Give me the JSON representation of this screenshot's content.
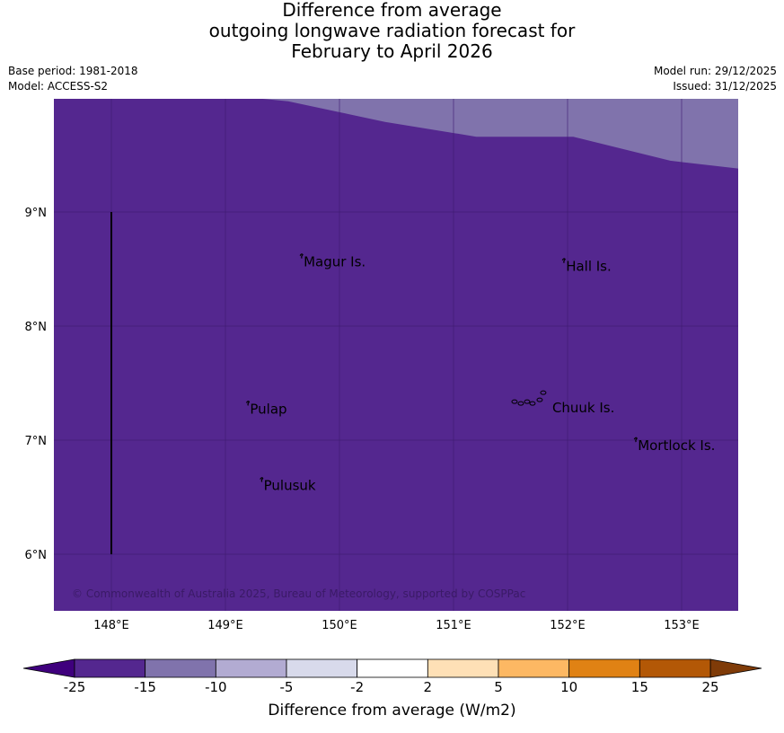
{
  "title": {
    "line1": "Difference from average",
    "line2": "outgoing longwave radiation forecast for",
    "line3": "February to April 2026"
  },
  "meta": {
    "base_period": "Base period: 1981-2018",
    "model": "Model: ACCESS-S2",
    "model_run": "Model run: 29/12/2025",
    "issued": "Issued: 31/12/2025"
  },
  "map": {
    "lon_range": [
      147.5,
      153.5
    ],
    "lat_range": [
      5.5,
      10.0
    ],
    "lon_ticks": [
      {
        "value": 148,
        "label": "148°E"
      },
      {
        "value": 149,
        "label": "149°E"
      },
      {
        "value": 150,
        "label": "150°E"
      },
      {
        "value": 151,
        "label": "151°E"
      },
      {
        "value": 152,
        "label": "152°E"
      },
      {
        "value": 153,
        "label": "153°E"
      }
    ],
    "lat_ticks": [
      {
        "value": 9,
        "label": "9°N"
      },
      {
        "value": 8,
        "label": "8°N"
      },
      {
        "value": 7,
        "label": "7°N"
      },
      {
        "value": 6,
        "label": "6°N"
      }
    ],
    "background_color": "#54278f",
    "band_color": "#8073ac",
    "band_boundary": [
      [
        149.25,
        10.0
      ],
      [
        149.55,
        9.97
      ],
      [
        150.4,
        9.79
      ],
      [
        151.2,
        9.66
      ],
      [
        152.05,
        9.66
      ],
      [
        152.9,
        9.45
      ],
      [
        153.5,
        9.38
      ]
    ],
    "grid_color": "#3d1a6e",
    "meridian_line": {
      "lon": 148,
      "lat_from": 6,
      "lat_to": 9
    },
    "places": [
      {
        "name": "Magur Is.",
        "lon": 149.67,
        "lat": 8.57
      },
      {
        "name": "Hall Is.",
        "lon": 151.97,
        "lat": 8.53
      },
      {
        "name": "Pulap",
        "lon": 149.2,
        "lat": 7.28
      },
      {
        "name": "Chuuk Is.",
        "lon": 151.85,
        "lat": 7.29
      },
      {
        "name": "Mortlock Is.",
        "lon": 152.6,
        "lat": 6.96
      },
      {
        "name": "Pulusuk",
        "lon": 149.32,
        "lat": 6.61
      }
    ],
    "copyright": "© Commonwealth of Australia 2025, Bureau of Meteorology, supported by COSPPac"
  },
  "colorbar": {
    "title": "Difference from average (W/m2)",
    "low_extend_color": "#3f007d",
    "high_extend_color": "#7f3b08",
    "bins": [
      {
        "color": "#54278f"
      },
      {
        "color": "#8073ac"
      },
      {
        "color": "#b2abd2"
      },
      {
        "color": "#d8daeb"
      },
      {
        "color": "#ffffff"
      },
      {
        "color": "#fee0b6"
      },
      {
        "color": "#fdb863"
      },
      {
        "color": "#e08214"
      },
      {
        "color": "#b35806"
      }
    ],
    "labels": [
      "-25",
      "-15",
      "-10",
      "-5",
      "-2",
      "2",
      "5",
      "10",
      "15",
      "25"
    ]
  }
}
